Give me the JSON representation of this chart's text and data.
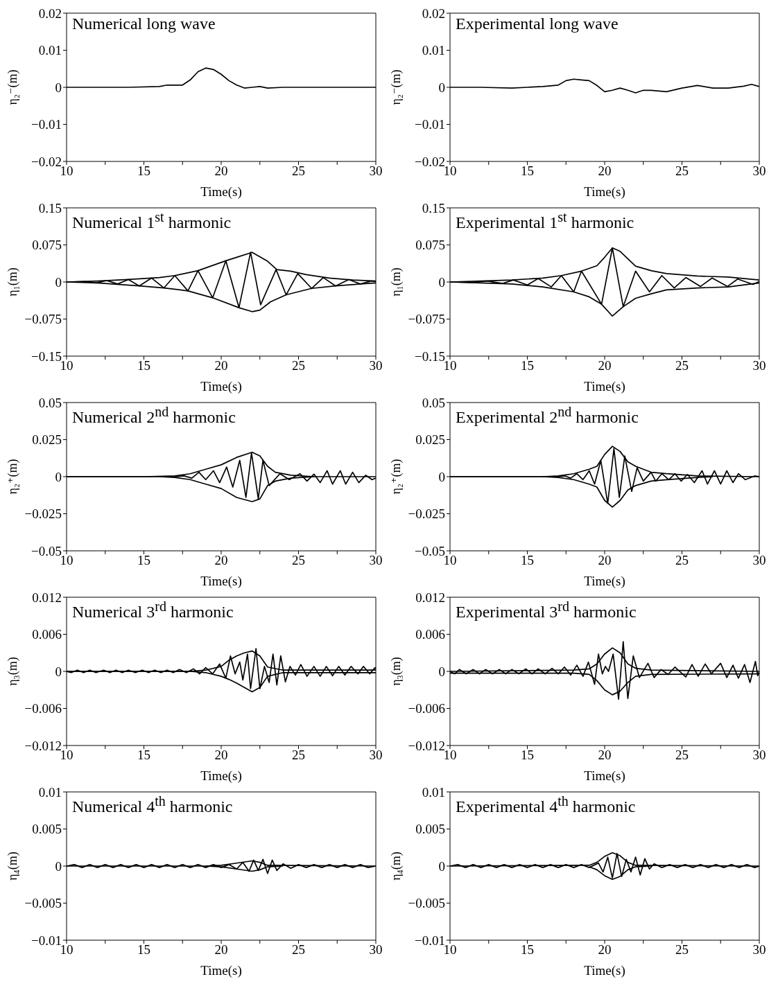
{
  "chart_data": [
    {
      "type": "line",
      "title": "Numerical long wave",
      "xlabel": "Time(s)",
      "ylabel": "η₂⁻(m)",
      "xlim": [
        10,
        30
      ],
      "xticks": [
        10,
        {
          "value": 12.5,
          "label": null
        },
        15,
        {
          "value": 17.5,
          "label": null
        },
        20,
        {
          "value": 22.5,
          "label": null
        },
        25,
        {
          "value": 27.5,
          "label": null
        },
        30
      ],
      "ylim": [
        -0.02,
        0.02
      ],
      "yticks": [
        -0.02,
        -0.01,
        0,
        0.01,
        0.02
      ],
      "series": [
        {
          "color": "#000000",
          "x": [
            10,
            12,
            14,
            16,
            16.5,
            17.5,
            18,
            18.5,
            19,
            19.5,
            20,
            20.5,
            21,
            21.5,
            22,
            22.5,
            23,
            24,
            26,
            28,
            30
          ],
          "values": [
            0,
            0,
            0,
            0.0002,
            0.0006,
            0.0006,
            0.002,
            0.0042,
            0.0052,
            0.0048,
            0.0035,
            0.0018,
            0.0006,
            -0.0002,
            0,
            0.0002,
            -0.0002,
            0,
            0,
            0,
            0
          ]
        }
      ]
    },
    {
      "type": "line",
      "title": "Experimental long wave",
      "xlabel": "Time(s)",
      "ylabel": "η₂⁻(m)",
      "xlim": [
        10,
        30
      ],
      "xticks": [
        10,
        {
          "value": 12.5,
          "label": null
        },
        15,
        {
          "value": 17.5,
          "label": null
        },
        20,
        {
          "value": 22.5,
          "label": null
        },
        25,
        {
          "value": 27.5,
          "label": null
        },
        30
      ],
      "ylim": [
        -0.02,
        0.02
      ],
      "yticks": [
        -0.02,
        -0.01,
        0,
        0.01,
        0.02
      ],
      "series": [
        {
          "color": "#000000",
          "x": [
            10,
            12,
            14,
            15,
            16,
            17,
            17.5,
            18,
            18.5,
            19,
            19.5,
            20,
            20.5,
            21,
            21.5,
            22,
            22.5,
            23,
            24,
            25,
            26,
            27,
            28,
            29,
            29.5,
            30
          ],
          "values": [
            0,
            0,
            -0.0002,
            0,
            0.0002,
            0.0006,
            0.0018,
            0.0022,
            0.002,
            0.0018,
            0.0005,
            -0.0012,
            -0.0008,
            -0.0002,
            -0.0008,
            -0.0015,
            -0.0008,
            -0.0008,
            -0.0012,
            -0.0002,
            0.0005,
            -0.0002,
            -0.0002,
            0.0003,
            0.0008,
            0.0002
          ]
        }
      ]
    },
    {
      "type": "line",
      "title": "Numerical 1$^{st}$ harmonic",
      "xlabel": "Time(s)",
      "ylabel": "η₁(m)",
      "xlim": [
        10,
        30
      ],
      "xticks": [
        10,
        {
          "value": 12.5,
          "label": null
        },
        15,
        {
          "value": 17.5,
          "label": null
        },
        20,
        {
          "value": 22.5,
          "label": null
        },
        25,
        {
          "value": 27.5,
          "label": null
        },
        30
      ],
      "ylim": [
        -0.15,
        0.15
      ],
      "yticks": [
        -0.15,
        -0.075,
        0,
        0.075,
        0.15
      ],
      "series": [
        {
          "color": "#000000",
          "x": [
            10,
            11.2,
            11.9,
            12.6,
            13.3,
            14.0,
            14.7,
            15.5,
            16.3,
            17.0,
            17.85,
            18.5,
            19.45,
            20.3,
            21.15,
            21.9,
            22.55,
            23.55,
            24.2,
            24.95,
            25.85,
            26.6,
            27.4,
            28.25,
            29.0,
            29.7,
            30
          ],
          "values": [
            0,
            0.001,
            -0.002,
            0.003,
            -0.004,
            0.005,
            -0.008,
            0.008,
            -0.012,
            0.013,
            -0.018,
            0.023,
            -0.032,
            0.043,
            -0.052,
            0.06,
            -0.046,
            0.025,
            -0.026,
            0.017,
            -0.013,
            0.009,
            -0.008,
            0.005,
            -0.004,
            0.002,
            0.001
          ]
        },
        {
          "color": "#000000",
          "x": [
            10,
            12,
            14,
            16,
            17,
            18.5,
            20.3,
            21,
            22,
            23,
            23.6,
            24.5,
            25.5,
            27,
            28.5,
            30
          ],
          "values": [
            0,
            0.002,
            0.005,
            0.009,
            0.013,
            0.023,
            0.043,
            0.05,
            0.06,
            0.042,
            0.025,
            0.022,
            0.015,
            0.008,
            0.004,
            0.002
          ]
        },
        {
          "color": "#000000",
          "x": [
            10,
            12,
            14.7,
            16.3,
            17.85,
            19.45,
            21.15,
            22,
            22.5,
            23.2,
            24.2,
            25.85,
            27.4,
            29,
            30
          ],
          "values": [
            0,
            -0.002,
            -0.008,
            -0.012,
            -0.018,
            -0.032,
            -0.052,
            -0.06,
            -0.057,
            -0.04,
            -0.026,
            -0.013,
            -0.008,
            -0.004,
            -0.002
          ]
        }
      ]
    },
    {
      "type": "line",
      "title": "Experimental 1$^{st}$ harmonic",
      "xlabel": "Time(s)",
      "ylabel": "η₁(m)",
      "xlim": [
        10,
        30
      ],
      "xticks": [
        10,
        {
          "value": 12.5,
          "label": null
        },
        15,
        {
          "value": 17.5,
          "label": null
        },
        20,
        {
          "value": 22.5,
          "label": null
        },
        25,
        {
          "value": 27.5,
          "label": null
        },
        30
      ],
      "ylim": [
        -0.15,
        0.15
      ],
      "yticks": [
        -0.15,
        -0.075,
        0,
        0.075,
        0.15
      ],
      "series": [
        {
          "color": "#000000",
          "x": [
            10,
            11.5,
            12.4,
            13.4,
            14.1,
            15.0,
            15.7,
            16.55,
            17.2,
            18.0,
            18.5,
            19.8,
            20.5,
            21.2,
            22.0,
            22.9,
            23.7,
            24.5,
            25.25,
            26.2,
            26.95,
            27.95,
            28.6,
            29.6,
            30
          ],
          "values": [
            0,
            -0.001,
            0.002,
            -0.003,
            0.004,
            -0.006,
            0.007,
            -0.01,
            0.013,
            -0.02,
            0.022,
            -0.045,
            0.069,
            -0.05,
            0.022,
            -0.02,
            0.013,
            -0.012,
            0.009,
            -0.009,
            0.008,
            -0.009,
            0.006,
            -0.005,
            0.001
          ]
        },
        {
          "color": "#000000",
          "x": [
            10,
            12,
            14,
            16,
            17.2,
            18.5,
            19.5,
            20,
            20.5,
            21,
            22,
            23,
            24,
            26,
            28,
            30
          ],
          "values": [
            0,
            0.002,
            0.004,
            0.008,
            0.013,
            0.022,
            0.033,
            0.05,
            0.069,
            0.062,
            0.032,
            0.023,
            0.017,
            0.012,
            0.01,
            0.004
          ]
        },
        {
          "color": "#000000",
          "x": [
            10,
            12,
            14,
            16,
            18,
            19,
            19.8,
            20.5,
            21.2,
            22,
            23,
            24,
            26,
            28,
            30
          ],
          "values": [
            0,
            -0.002,
            -0.004,
            -0.01,
            -0.02,
            -0.03,
            -0.045,
            -0.069,
            -0.05,
            -0.033,
            -0.024,
            -0.016,
            -0.012,
            -0.01,
            -0.002
          ]
        }
      ]
    },
    {
      "type": "line",
      "title": "Numerical 2$^{nd}$ harmonic",
      "xlabel": "Time(s)",
      "ylabel": "η₂⁺(m)",
      "xlim": [
        10,
        30
      ],
      "xticks": [
        10,
        {
          "value": 12.5,
          "label": null
        },
        15,
        {
          "value": 17.5,
          "label": null
        },
        20,
        {
          "value": 22.5,
          "label": null
        },
        25,
        {
          "value": 27.5,
          "label": null
        },
        30
      ],
      "ylim": [
        -0.05,
        0.05
      ],
      "yticks": [
        -0.05,
        -0.025,
        0,
        0.025,
        0.05
      ],
      "series": [
        {
          "color": "#000000",
          "x": [
            10,
            17,
            17.6,
            18.1,
            18.56,
            19.0,
            19.5,
            19.9,
            20.35,
            20.75,
            21.2,
            21.6,
            21.96,
            22.4,
            22.7,
            23.1,
            23.8,
            24.4,
            25.1,
            25.55,
            26.0,
            26.4,
            26.85,
            27.2,
            27.7,
            28.05,
            28.5,
            28.9,
            29.35,
            29.75,
            30
          ],
          "values": [
            0,
            0,
            0.0005,
            -0.001,
            0.003,
            -0.002,
            0.004,
            -0.004,
            0.0065,
            -0.007,
            0.011,
            -0.014,
            0.016,
            -0.015,
            0.011,
            -0.006,
            0.002,
            -0.002,
            0.002,
            -0.003,
            0.0017,
            -0.004,
            0.004,
            -0.005,
            0.004,
            -0.005,
            0.003,
            -0.004,
            0.001,
            -0.002,
            -0.001
          ]
        },
        {
          "color": "#000000",
          "x": [
            10,
            15,
            17,
            18,
            19,
            20,
            21,
            22,
            22.5,
            23,
            23.5,
            24.5,
            26,
            30
          ],
          "values": [
            0,
            0,
            0.0005,
            0.002,
            0.005,
            0.008,
            0.013,
            0.0165,
            0.014,
            0.007,
            0.003,
            0.001,
            0,
            0
          ]
        },
        {
          "color": "#000000",
          "x": [
            16,
            17,
            18,
            19,
            20,
            21,
            22,
            22.5,
            23,
            23.5,
            24.5,
            26
          ],
          "values": [
            0,
            -0.0005,
            -0.002,
            -0.005,
            -0.008,
            -0.014,
            -0.0168,
            -0.015,
            -0.006,
            -0.003,
            -0.001,
            0
          ]
        }
      ]
    },
    {
      "type": "line",
      "title": "Experimental 2$^{nd}$ harmonic",
      "xlabel": "Time(s)",
      "ylabel": "η₂⁺(m)",
      "xlim": [
        10,
        30
      ],
      "xticks": [
        10,
        {
          "value": 12.5,
          "label": null
        },
        15,
        {
          "value": 17.5,
          "label": null
        },
        20,
        {
          "value": 22.5,
          "label": null
        },
        25,
        {
          "value": 27.5,
          "label": null
        },
        30
      ],
      "ylim": [
        -0.05,
        0.05
      ],
      "yticks": [
        -0.05,
        -0.025,
        0,
        0.025,
        0.05
      ],
      "series": [
        {
          "color": "#000000",
          "x": [
            10,
            17,
            17.45,
            17.8,
            18.2,
            18.6,
            19.0,
            19.35,
            19.75,
            20.2,
            20.6,
            20.95,
            21.3,
            21.75,
            22.1,
            22.5,
            23.0,
            23.3,
            23.7,
            24.15,
            24.55,
            24.95,
            25.35,
            25.8,
            26.3,
            26.65,
            27.1,
            27.5,
            27.9,
            28.3,
            28.65,
            29.1,
            29.7,
            30
          ],
          "values": [
            0,
            0,
            0.0005,
            -0.001,
            0.002,
            -0.002,
            0.004,
            -0.005,
            0.011,
            -0.018,
            0.019,
            -0.014,
            0.014,
            -0.01,
            0.006,
            -0.003,
            0.003,
            -0.003,
            0.002,
            -0.002,
            0.002,
            -0.003,
            0.0015,
            -0.004,
            0.004,
            -0.005,
            0.004,
            -0.005,
            0.004,
            -0.004,
            0.002,
            -0.002,
            0.0005,
            0
          ]
        },
        {
          "color": "#000000",
          "x": [
            10,
            16,
            17,
            18,
            19,
            19.5,
            20,
            20.5,
            21,
            21.5,
            22,
            23,
            24,
            26,
            30
          ],
          "values": [
            0,
            0,
            0.0005,
            0.002,
            0.005,
            0.007,
            0.015,
            0.0205,
            0.017,
            0.01,
            0.007,
            0.003,
            0.002,
            0.0005,
            0
          ]
        },
        {
          "color": "#000000",
          "x": [
            16,
            17,
            18,
            19,
            19.5,
            20,
            20.5,
            21,
            21.5,
            22,
            23,
            24,
            26,
            27
          ],
          "values": [
            0,
            -0.0005,
            -0.002,
            -0.005,
            -0.007,
            -0.016,
            -0.0205,
            -0.016,
            -0.009,
            -0.006,
            -0.003,
            -0.002,
            -0.0005,
            0
          ]
        }
      ]
    },
    {
      "type": "line",
      "title": "Numerical 3$^{rd}$ harmonic",
      "xlabel": "Time(s)",
      "ylabel": "η₃(m)",
      "xlim": [
        10,
        30
      ],
      "xticks": [
        10,
        {
          "value": 12.5,
          "label": null
        },
        15,
        {
          "value": 17.5,
          "label": null
        },
        20,
        {
          "value": 22.5,
          "label": null
        },
        25,
        {
          "value": 27.5,
          "label": null
        },
        30
      ],
      "ylim": [
        -0.012,
        0.012
      ],
      "yticks": [
        -0.012,
        -0.006,
        0,
        0.006,
        0.012
      ],
      "series": [
        {
          "color": "#000000",
          "x": [
            10,
            10.3,
            10.7,
            11.1,
            11.5,
            11.9,
            12.4,
            12.8,
            13.2,
            13.6,
            14.0,
            14.45,
            14.9,
            15.3,
            15.7,
            16.1,
            16.5,
            16.9,
            17.3,
            17.75,
            18.2,
            18.6,
            19.0,
            19.45,
            19.9,
            20.3,
            20.6,
            20.9,
            21.2,
            21.4,
            21.7,
            21.9,
            22.25,
            22.5,
            22.8,
            23.1,
            23.35,
            23.6,
            23.85,
            24.15,
            24.45,
            24.8,
            25.15,
            25.55,
            26.0,
            26.4,
            26.8,
            27.2,
            27.6,
            28.0,
            28.4,
            28.85,
            29.2,
            29.6,
            29.95,
            30
          ],
          "values": [
            0,
            -0.0002,
            0.0002,
            -0.0002,
            0.0002,
            -0.0002,
            0.0002,
            -0.0002,
            0.0002,
            -0.0002,
            0.0002,
            -0.0002,
            0.0002,
            -0.0002,
            0.0002,
            -0.0002,
            0.0002,
            -0.0002,
            0.0003,
            -0.0002,
            0.0004,
            -0.0004,
            0.0006,
            -0.0004,
            0.0012,
            -0.0011,
            0.0025,
            -0.0004,
            0.0015,
            -0.0014,
            0.0028,
            -0.0028,
            0.0037,
            -0.0028,
            0.0008,
            -0.0018,
            0.0028,
            -0.0022,
            0.0025,
            -0.0017,
            0.0008,
            -0.0006,
            0.0011,
            -0.0008,
            0.0008,
            -0.0008,
            0.0008,
            -0.0007,
            0.0008,
            -0.0006,
            0.0008,
            -0.0004,
            0.0008,
            -0.0004,
            0.0006,
            0.0004
          ]
        },
        {
          "color": "#000000",
          "x": [
            10,
            18,
            19,
            20,
            20.5,
            21,
            21.5,
            22,
            22.5,
            23,
            24,
            30
          ],
          "values": [
            0,
            0,
            0.0002,
            0.0008,
            0.0018,
            0.0025,
            0.003,
            0.0033,
            0.0025,
            0.0007,
            0.0002,
            0.0002
          ]
        },
        {
          "color": "#000000",
          "x": [
            10,
            18,
            19,
            20,
            20.5,
            21,
            21.5,
            22,
            22.5,
            23,
            24,
            30
          ],
          "values": [
            0,
            0,
            -0.0002,
            -0.0008,
            -0.0013,
            -0.0019,
            -0.0026,
            -0.0033,
            -0.0026,
            -0.0008,
            -0.0002,
            -0.0002
          ]
        }
      ]
    },
    {
      "type": "line",
      "title": "Experimental 3$^{rd}$ harmonic",
      "xlabel": "Time(s)",
      "ylabel": "η₃(m)",
      "xlim": [
        10,
        30
      ],
      "xticks": [
        10,
        {
          "value": 12.5,
          "label": null
        },
        15,
        {
          "value": 17.5,
          "label": null
        },
        20,
        {
          "value": 22.5,
          "label": null
        },
        25,
        {
          "value": 27.5,
          "label": null
        },
        30
      ],
      "ylim": [
        -0.012,
        0.012
      ],
      "yticks": [
        -0.012,
        -0.006,
        0,
        0.006,
        0.012
      ],
      "series": [
        {
          "color": "#000000",
          "x": [
            10,
            10.3,
            10.6,
            11.05,
            11.5,
            11.9,
            12.3,
            12.75,
            13.2,
            13.6,
            14.0,
            14.45,
            14.9,
            15.3,
            15.7,
            16.15,
            16.6,
            17.0,
            17.4,
            17.8,
            18.2,
            18.6,
            18.95,
            19.35,
            19.6,
            19.85,
            20.05,
            20.25,
            20.55,
            20.9,
            21.2,
            21.5,
            21.85,
            22.25,
            22.8,
            23.2,
            23.65,
            24.1,
            24.55,
            25.25,
            25.65,
            26.05,
            26.5,
            26.9,
            27.5,
            27.9,
            28.3,
            28.65,
            29.05,
            29.4,
            29.75,
            29.9,
            30
          ],
          "values": [
            0,
            -0.0004,
            0.0003,
            -0.0004,
            0.0003,
            -0.0004,
            0.0003,
            -0.0004,
            0.0003,
            -0.0004,
            0.0003,
            -0.0004,
            0.0004,
            -0.0004,
            0.0004,
            -0.0004,
            0.0005,
            -0.0004,
            0.0007,
            -0.0006,
            0.001,
            -0.0008,
            0.0015,
            -0.0021,
            0.0028,
            -0.0004,
            0.0008,
            0,
            0.0028,
            -0.0045,
            0.0048,
            -0.0044,
            0.0025,
            -0.001,
            0.0013,
            -0.001,
            0.0003,
            -0.0005,
            0.0007,
            -0.0009,
            0.0011,
            -0.0008,
            0.0012,
            -0.0004,
            0.0013,
            -0.001,
            0.001,
            -0.0011,
            0.0011,
            -0.0018,
            0.0016,
            -0.0007,
            0
          ]
        },
        {
          "color": "#000000",
          "x": [
            10,
            18,
            19,
            19.5,
            20,
            20.5,
            21,
            21.5,
            22,
            23,
            30
          ],
          "values": [
            0,
            0.0002,
            0.0004,
            0.0012,
            0.0028,
            0.0038,
            0.003,
            0.0012,
            0.0005,
            0.0002,
            0
          ]
        },
        {
          "color": "#000000",
          "x": [
            10,
            18,
            19,
            19.5,
            20,
            20.5,
            21,
            21.5,
            22,
            23,
            30
          ],
          "values": [
            -0.0003,
            -0.0003,
            -0.0005,
            -0.0015,
            -0.003,
            -0.0038,
            -0.0032,
            -0.0018,
            -0.0008,
            -0.0005,
            -0.0004
          ]
        }
      ]
    },
    {
      "type": "line",
      "title": "Numerical 4$^{th}$ harmonic",
      "xlabel": "Time(s)",
      "ylabel": "η₄(m)",
      "xlim": [
        10,
        30
      ],
      "xticks": [
        10,
        {
          "value": 12.5,
          "label": null
        },
        15,
        {
          "value": 17.5,
          "label": null
        },
        20,
        {
          "value": 22.5,
          "label": null
        },
        25,
        {
          "value": 27.5,
          "label": null
        },
        30
      ],
      "ylim": [
        -0.01,
        0.01
      ],
      "yticks": [
        -0.01,
        -0.005,
        0,
        0.005,
        0.01
      ],
      "series": [
        {
          "color": "#000000",
          "x": [
            10,
            10.5,
            11,
            11.5,
            12,
            12.5,
            13,
            13.5,
            14,
            14.5,
            15,
            15.5,
            16,
            16.5,
            17,
            17.5,
            18,
            18.5,
            19,
            19.5,
            20,
            20.5,
            21,
            21.4,
            21.8,
            22.1,
            22.4,
            22.7,
            23.0,
            23.3,
            23.6,
            24,
            24.5,
            25,
            25.5,
            26,
            26.5,
            27,
            27.5,
            28,
            28.5,
            29,
            29.5,
            30
          ],
          "values": [
            0,
            0.0002,
            -0.0002,
            0.0002,
            -0.0002,
            0.0002,
            -0.0002,
            0.0002,
            -0.0002,
            0.0002,
            -0.0002,
            0.0002,
            -0.0002,
            0.0002,
            -0.0002,
            0.0002,
            -0.0002,
            0.0002,
            -0.0002,
            0.0002,
            -0.0002,
            0.0002,
            -0.0004,
            0.0005,
            -0.0007,
            0.0008,
            -0.0006,
            0.0009,
            -0.001,
            0.0008,
            -0.0006,
            0.0003,
            -0.0003,
            0.0002,
            -0.0002,
            0.0002,
            -0.0002,
            0.0002,
            -0.0002,
            0.0002,
            -0.0002,
            0.0002,
            -0.0002,
            0
          ]
        },
        {
          "color": "#000000",
          "x": [
            10,
            19,
            20,
            21,
            22,
            22.5,
            23,
            30
          ],
          "values": [
            0,
            0,
            0.0001,
            0.0004,
            0.0007,
            0.0005,
            0.0001,
            0
          ]
        },
        {
          "color": "#000000",
          "x": [
            19,
            20,
            21,
            22,
            22.5,
            23,
            24
          ],
          "values": [
            0,
            -0.0001,
            -0.0004,
            -0.0007,
            -0.0005,
            -0.0001,
            0
          ]
        }
      ]
    },
    {
      "type": "line",
      "title": "Experimental 4$^{th}$ harmonic",
      "xlabel": "Time(s)",
      "ylabel": "η₄(m)",
      "xlim": [
        10,
        30
      ],
      "xticks": [
        10,
        {
          "value": 12.5,
          "label": null
        },
        15,
        {
          "value": 17.5,
          "label": null
        },
        20,
        {
          "value": 22.5,
          "label": null
        },
        25,
        {
          "value": 27.5,
          "label": null
        },
        30
      ],
      "ylim": [
        -0.01,
        0.01
      ],
      "yticks": [
        -0.01,
        -0.005,
        0,
        0.005,
        0.01
      ],
      "series": [
        {
          "color": "#000000",
          "x": [
            10,
            10.5,
            11,
            11.5,
            12,
            12.5,
            13,
            13.5,
            14,
            14.5,
            15,
            15.5,
            16,
            16.5,
            17,
            17.5,
            18,
            18.5,
            19,
            19.6,
            19.9,
            20.2,
            20.5,
            20.8,
            21.1,
            21.4,
            21.7,
            22.0,
            22.3,
            22.6,
            22.9,
            23.2,
            23.7,
            24.2,
            24.7,
            25.2,
            25.7,
            26.2,
            26.7,
            27.2,
            27.7,
            28.2,
            28.7,
            29.2,
            29.7,
            30
          ],
          "values": [
            0,
            0.0002,
            -0.0002,
            0.0002,
            -0.0002,
            0.0002,
            -0.0002,
            0.0002,
            -0.0002,
            0.0002,
            -0.0002,
            0.0002,
            -0.0002,
            0.0002,
            -0.0002,
            0.0002,
            -0.0002,
            0.0002,
            -0.0002,
            0.0004,
            -0.0008,
            0.0012,
            -0.0016,
            0.0017,
            -0.0014,
            0.0009,
            -0.0008,
            0.0012,
            -0.0012,
            0.001,
            -0.0004,
            0.0003,
            -0.0002,
            0.0002,
            -0.0002,
            0.0002,
            -0.0002,
            0.0002,
            -0.0002,
            0.0002,
            -0.0002,
            0.0002,
            -0.0002,
            0.0002,
            -0.0002,
            0
          ]
        },
        {
          "color": "#000000",
          "x": [
            10,
            19,
            19.5,
            20,
            20.5,
            21,
            21.5,
            22,
            30
          ],
          "values": [
            0,
            0.0001,
            0.0005,
            0.0013,
            0.0018,
            0.0014,
            0.0005,
            0.0001,
            0
          ]
        },
        {
          "color": "#000000",
          "x": [
            19,
            19.5,
            20,
            20.5,
            21,
            21.5,
            22,
            23
          ],
          "values": [
            -0.0001,
            -0.0005,
            -0.0013,
            -0.0018,
            -0.0014,
            -0.0005,
            -0.0001,
            0
          ]
        }
      ]
    }
  ]
}
